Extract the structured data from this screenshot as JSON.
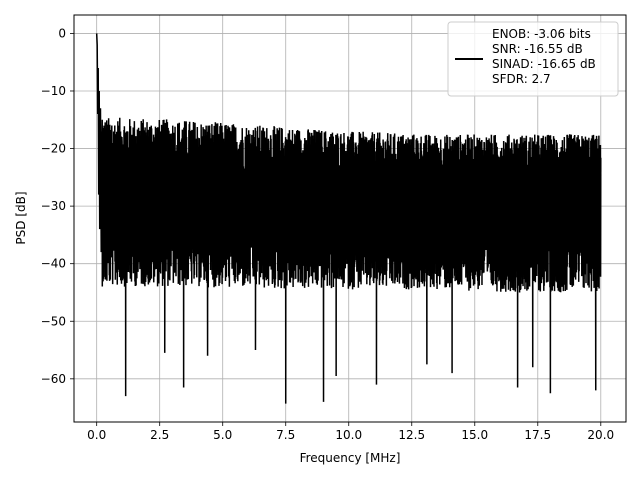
{
  "chart_data": {
    "type": "line",
    "xlabel": "Frequency [MHz]",
    "ylabel": "PSD [dB]",
    "xlim": [
      -0.9,
      21.0
    ],
    "ylim": [
      -67.5,
      3.2
    ],
    "xticks": [
      0.0,
      2.5,
      5.0,
      7.5,
      10.0,
      12.5,
      15.0,
      17.5,
      20.0
    ],
    "xtick_labels": [
      "0.0",
      "2.5",
      "5.0",
      "7.5",
      "10.0",
      "12.5",
      "15.0",
      "17.5",
      "20.0"
    ],
    "yticks": [
      0,
      -10,
      -20,
      -30,
      -40,
      -50,
      -60
    ],
    "ytick_labels": [
      "0",
      "−10",
      "−20",
      "−30",
      "−40",
      "−50",
      "−60"
    ],
    "grid": true,
    "legend_position": "top-right",
    "line_color": "#000000",
    "legend_entries": [
      "ENOB: -3.06 bits",
      "SNR: -16.55 dB",
      "SINAD: -16.65 dB",
      "SFDR: 2.7"
    ],
    "series": [
      {
        "x": [
          0.0,
          0.02,
          0.04,
          0.06,
          0.08,
          0.1,
          0.12,
          0.15,
          0.18,
          0.22,
          0.26,
          0.3,
          0.35,
          0.4,
          0.5,
          0.6,
          0.8,
          1.0,
          1.2,
          1.5
        ],
        "values": [
          0.0,
          -2.0,
          -14.0,
          -6.0,
          -28.0,
          -10.0,
          -34.0,
          -13.0,
          -38.0,
          -15.0,
          -36.0,
          -18.0,
          -40.0,
          -17.0,
          -42.0,
          -16.0,
          -40.0,
          -18.0,
          -38.0,
          -19.0
        ]
      }
    ],
    "noise_band": {
      "x_start": 0.2,
      "x_end": 20.0,
      "upper_envelope": [
        -14.5,
        -15.0,
        -16.0,
        -17.0,
        -17.5,
        -17.5,
        -17.5
      ],
      "lower_envelope": [
        -44.0,
        -44.0,
        -44.5,
        -44.5,
        -44.5,
        -45.0,
        -45.0
      ],
      "mean_level": -30.0
    },
    "deep_spikes": [
      {
        "x": 1.15,
        "y": -63.0
      },
      {
        "x": 3.45,
        "y": -61.5
      },
      {
        "x": 2.7,
        "y": -55.5
      },
      {
        "x": 7.5,
        "y": -64.3
      },
      {
        "x": 9.0,
        "y": -64.0
      },
      {
        "x": 9.5,
        "y": -59.5
      },
      {
        "x": 11.1,
        "y": -61.0
      },
      {
        "x": 13.1,
        "y": -57.5
      },
      {
        "x": 14.1,
        "y": -59.0
      },
      {
        "x": 16.7,
        "y": -61.5
      },
      {
        "x": 18.0,
        "y": -62.5
      },
      {
        "x": 19.8,
        "y": -62.0
      },
      {
        "x": 6.3,
        "y": -55.0
      },
      {
        "x": 4.4,
        "y": -56.0
      },
      {
        "x": 17.3,
        "y": -58.0
      }
    ]
  }
}
